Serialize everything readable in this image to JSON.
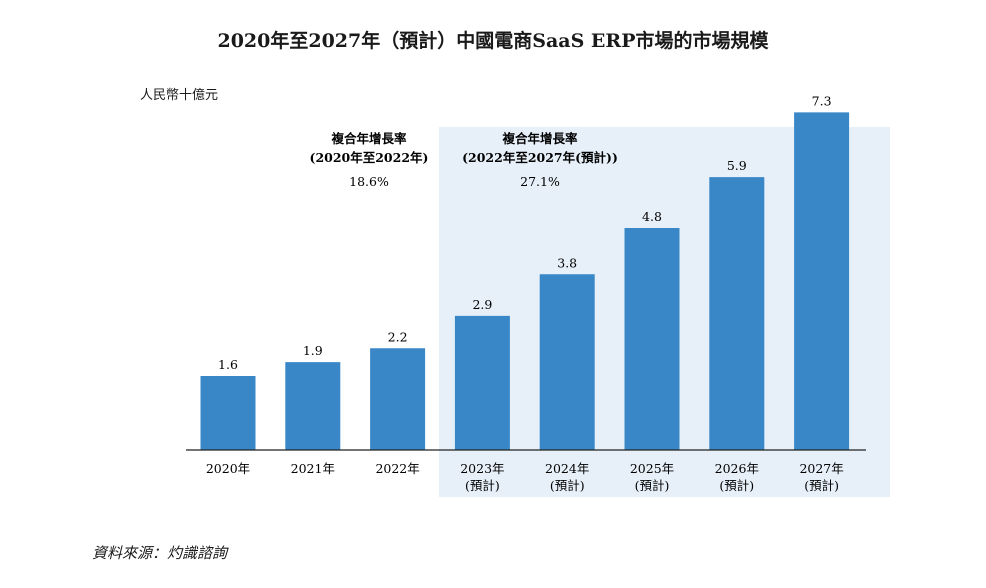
{
  "title": "2020年至2027年（預計）中國電商SaaS ERP市場的市場規模",
  "unit_label": "人民幣十億元",
  "source": "資料來源：灼識諮詢",
  "colors": {
    "bar": "#3a87c8",
    "forecast_band": "#e7f0f9",
    "axis": "#222222"
  },
  "cagr": [
    {
      "label": "複合年增長率",
      "period": "(2020年至2022年)",
      "value": "18.6%"
    },
    {
      "label": "複合年增長率",
      "period": "(2022年至2027年(預計))",
      "value": "27.1%"
    }
  ],
  "chart_data": {
    "type": "bar",
    "title": "2020年至2027年（預計）中國電商SaaS ERP市場的市場規模",
    "ylabel": "人民幣十億元",
    "ylim": [
      0,
      8
    ],
    "grid": false,
    "categories": [
      "2020年",
      "2021年",
      "2022年",
      "2023年",
      "2024年",
      "2025年",
      "2026年",
      "2027年"
    ],
    "category_notes": [
      "",
      "",
      "",
      "(預計)",
      "(預計)",
      "(預計)",
      "(預計)",
      "(預計)"
    ],
    "values": [
      1.6,
      1.9,
      2.2,
      2.9,
      3.8,
      4.8,
      5.9,
      7.3
    ],
    "value_labels": [
      "1.6",
      "1.9",
      "2.2",
      "2.9",
      "3.8",
      "4.8",
      "5.9",
      "7.3"
    ],
    "forecast_start_index": 3
  }
}
